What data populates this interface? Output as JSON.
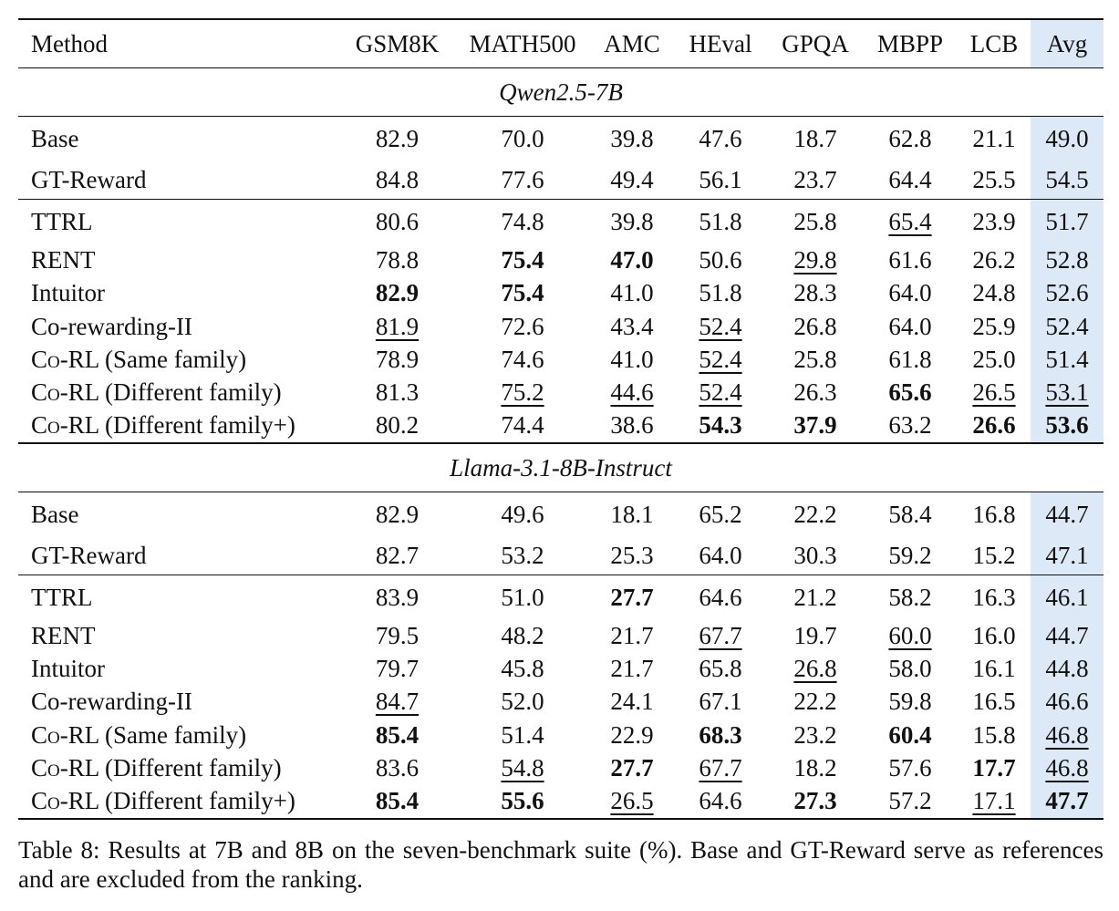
{
  "table": {
    "columns": [
      "Method",
      "GSM8K",
      "MATH500",
      "AMC",
      "HEval",
      "GPQA",
      "MBPP",
      "LCB",
      "Avg"
    ],
    "sections": [
      {
        "model": "Qwen2.5-7B",
        "reference_rows": [
          {
            "method": "Base",
            "values": [
              "82.9",
              "70.0",
              "39.8",
              "47.6",
              "18.7",
              "62.8",
              "21.1",
              "49.0"
            ],
            "bold": [],
            "underline": []
          },
          {
            "method": "GT-Reward",
            "values": [
              "84.8",
              "77.6",
              "49.4",
              "56.1",
              "23.7",
              "64.4",
              "25.5",
              "54.5"
            ],
            "bold": [],
            "underline": []
          }
        ],
        "ranked_rows": [
          {
            "method": "TTRL",
            "values": [
              "80.6",
              "74.8",
              "39.8",
              "51.8",
              "25.8",
              "65.4",
              "23.9",
              "51.7"
            ],
            "bold": [],
            "underline": [
              5
            ]
          },
          {
            "method": "RENT",
            "values": [
              "78.8",
              "75.4",
              "47.0",
              "50.6",
              "29.8",
              "61.6",
              "26.2",
              "52.8"
            ],
            "bold": [
              1,
              2
            ],
            "underline": [
              4
            ]
          },
          {
            "method": "Intuitor",
            "values": [
              "82.9",
              "75.4",
              "41.0",
              "51.8",
              "28.3",
              "64.0",
              "24.8",
              "52.6"
            ],
            "bold": [
              0,
              1
            ],
            "underline": []
          },
          {
            "method": "Co-rewarding-II",
            "values": [
              "81.9",
              "72.6",
              "43.4",
              "52.4",
              "26.8",
              "64.0",
              "25.9",
              "52.4"
            ],
            "bold": [],
            "underline": [
              0,
              3
            ]
          },
          {
            "method": "Co-RL (Same family)",
            "values": [
              "78.9",
              "74.6",
              "41.0",
              "52.4",
              "25.8",
              "61.8",
              "25.0",
              "51.4"
            ],
            "bold": [],
            "underline": [
              3
            ]
          },
          {
            "method": "Co-RL (Different family)",
            "values": [
              "81.3",
              "75.2",
              "44.6",
              "52.4",
              "26.3",
              "65.6",
              "26.5",
              "53.1"
            ],
            "bold": [
              5
            ],
            "underline": [
              1,
              2,
              3,
              6,
              7
            ]
          },
          {
            "method": "Co-RL (Different family+)",
            "values": [
              "80.2",
              "74.4",
              "38.6",
              "54.3",
              "37.9",
              "63.2",
              "26.6",
              "53.6"
            ],
            "bold": [
              3,
              4,
              6,
              7
            ],
            "underline": []
          }
        ]
      },
      {
        "model": "Llama-3.1-8B-Instruct",
        "reference_rows": [
          {
            "method": "Base",
            "values": [
              "82.9",
              "49.6",
              "18.1",
              "65.2",
              "22.2",
              "58.4",
              "16.8",
              "44.7"
            ],
            "bold": [],
            "underline": []
          },
          {
            "method": "GT-Reward",
            "values": [
              "82.7",
              "53.2",
              "25.3",
              "64.0",
              "30.3",
              "59.2",
              "15.2",
              "47.1"
            ],
            "bold": [],
            "underline": []
          }
        ],
        "ranked_rows": [
          {
            "method": "TTRL",
            "values": [
              "83.9",
              "51.0",
              "27.7",
              "64.6",
              "21.2",
              "58.2",
              "16.3",
              "46.1"
            ],
            "bold": [
              2
            ],
            "underline": []
          },
          {
            "method": "RENT",
            "values": [
              "79.5",
              "48.2",
              "21.7",
              "67.7",
              "19.7",
              "60.0",
              "16.0",
              "44.7"
            ],
            "bold": [],
            "underline": [
              3,
              5
            ]
          },
          {
            "method": "Intuitor",
            "values": [
              "79.7",
              "45.8",
              "21.7",
              "65.8",
              "26.8",
              "58.0",
              "16.1",
              "44.8"
            ],
            "bold": [],
            "underline": [
              4
            ]
          },
          {
            "method": "Co-rewarding-II",
            "values": [
              "84.7",
              "52.0",
              "24.1",
              "67.1",
              "22.2",
              "59.8",
              "16.5",
              "46.6"
            ],
            "bold": [],
            "underline": [
              0
            ]
          },
          {
            "method": "Co-RL (Same family)",
            "values": [
              "85.4",
              "51.4",
              "22.9",
              "68.3",
              "23.2",
              "60.4",
              "15.8",
              "46.8"
            ],
            "bold": [
              0,
              3,
              5
            ],
            "underline": [
              7
            ]
          },
          {
            "method": "Co-RL (Different family)",
            "values": [
              "83.6",
              "54.8",
              "27.7",
              "67.7",
              "18.2",
              "57.6",
              "17.7",
              "46.8"
            ],
            "bold": [
              2,
              6
            ],
            "underline": [
              1,
              3,
              7
            ]
          },
          {
            "method": "Co-RL (Different family+)",
            "values": [
              "85.4",
              "55.6",
              "26.5",
              "64.6",
              "27.3",
              "57.2",
              "17.1",
              "47.7"
            ],
            "bold": [
              0,
              1,
              4,
              7
            ],
            "underline": [
              2,
              6
            ]
          }
        ]
      }
    ]
  },
  "caption": "Table 8: Results at 7B and 8B on the seven-benchmark suite (%). Base and GT-Reward serve as references and are excluded from the ranking."
}
